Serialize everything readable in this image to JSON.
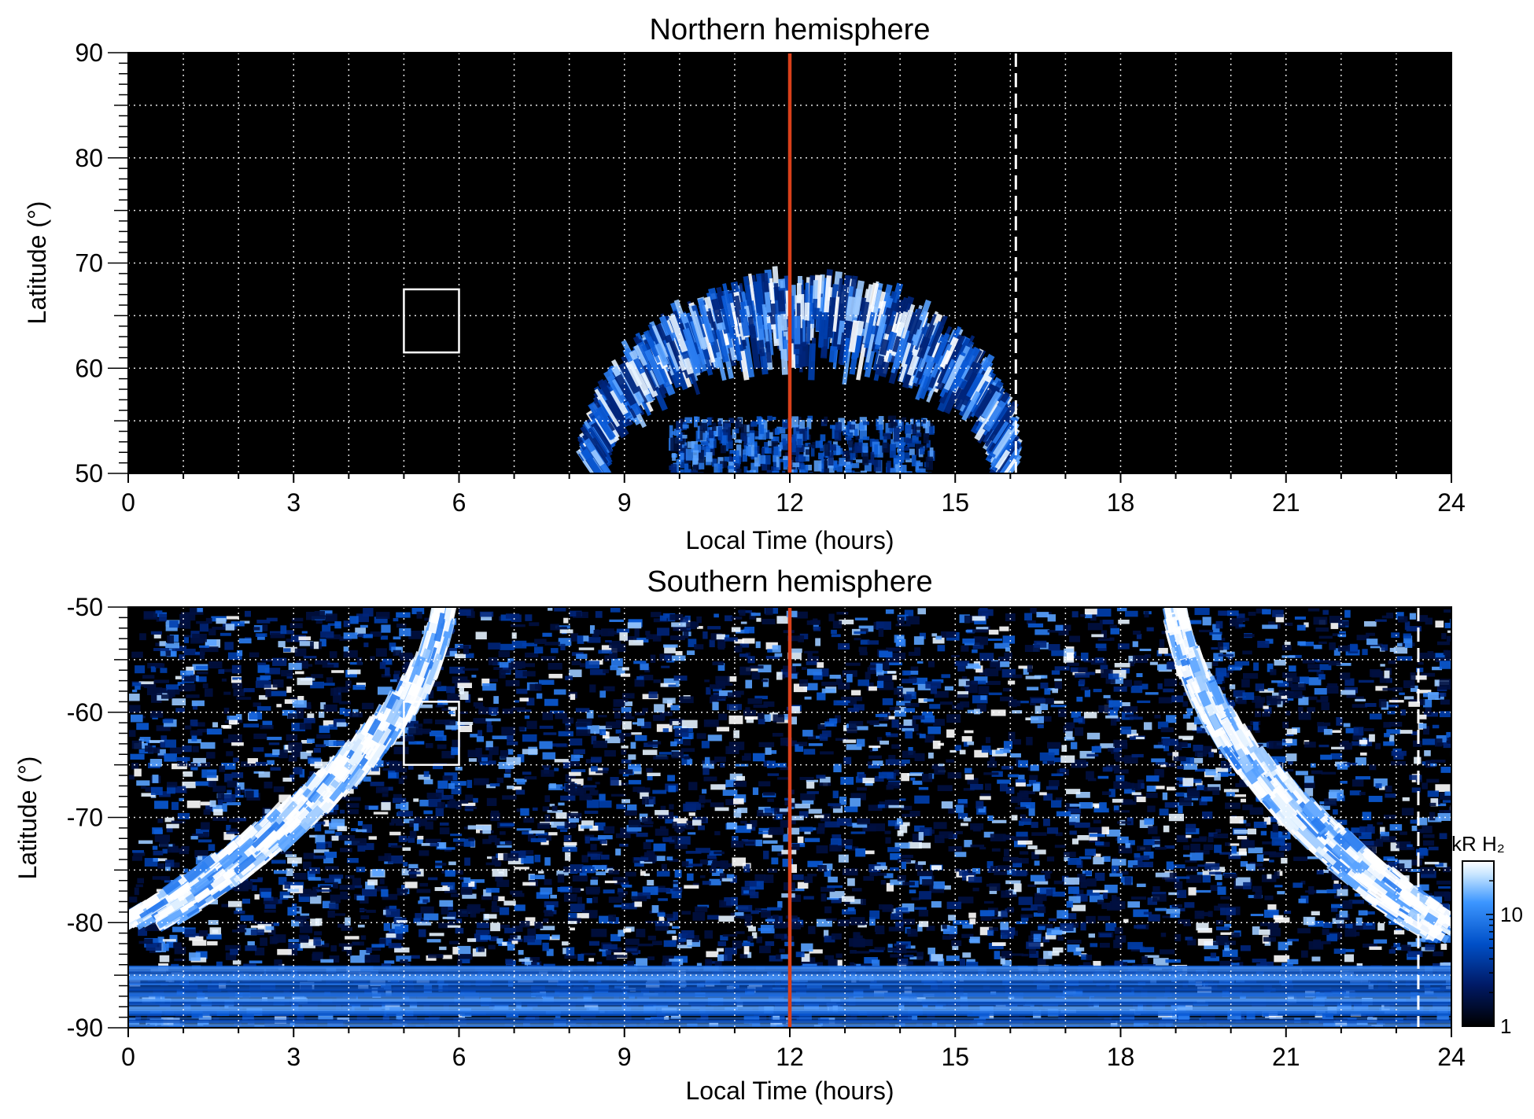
{
  "chart_data": [
    {
      "type": "heatmap",
      "title": "Northern hemisphere",
      "xlabel": "Local Time (hours)",
      "ylabel": "Latitude (°)",
      "xlim": [
        0,
        24
      ],
      "ylim": [
        50,
        90
      ],
      "xticks": [
        0,
        3,
        6,
        9,
        12,
        15,
        18,
        21,
        24
      ],
      "yticks": [
        50,
        60,
        70,
        80,
        90
      ],
      "grid": true,
      "grid_style": "dotted",
      "solid_line_lt": 12,
      "solid_line_color": "#d9401a",
      "dashed_line_lt": 16.1,
      "box": {
        "lt": [
          5,
          6
        ],
        "lat": [
          61.5,
          67.5
        ]
      },
      "emission": {
        "description_lt_lat": [
          {
            "lt": 8.6,
            "lat": 50
          },
          {
            "lt": 9.5,
            "lat": 57
          },
          {
            "lt": 10.6,
            "lat": 63
          },
          {
            "lt": 12.0,
            "lat": 67.5
          },
          {
            "lt": 13.0,
            "lat": 67
          },
          {
            "lt": 14.2,
            "lat": 64
          },
          {
            "lt": 15.4,
            "lat": 58
          },
          {
            "lt": 16.3,
            "lat": 50
          }
        ]
      }
    },
    {
      "type": "heatmap",
      "title": "Southern hemisphere",
      "xlabel": "Local Time (hours)",
      "ylabel": "Latitude (°)",
      "xlim": [
        0,
        24
      ],
      "ylim": [
        -90,
        -50
      ],
      "xticks": [
        0,
        3,
        6,
        9,
        12,
        15,
        18,
        21,
        24
      ],
      "yticks": [
        -90,
        -80,
        -70,
        -60,
        -50
      ],
      "grid": true,
      "grid_style": "dotted",
      "solid_line_lt": 12,
      "solid_line_color": "#d9401a",
      "dashed_line_lt": 23.4,
      "box": {
        "lt": [
          5,
          6
        ],
        "lat": [
          -65,
          -59
        ]
      },
      "colorbar": {
        "label": "kR H₂",
        "scale": "log",
        "range": [
          1,
          30
        ],
        "ticks": [
          1,
          10
        ],
        "colors": [
          "#000000",
          "#001a66",
          "#0050c8",
          "#3c96ff",
          "#c8e6ff",
          "#ffffff"
        ]
      }
    }
  ]
}
